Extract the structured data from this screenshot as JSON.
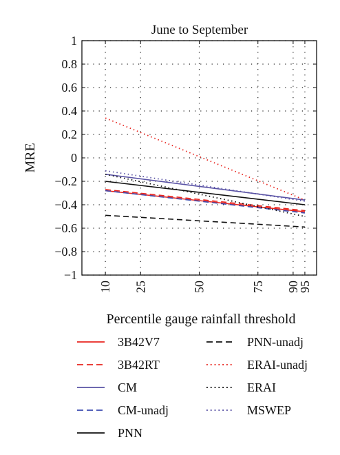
{
  "chart_data": {
    "type": "line",
    "title": "June to September",
    "xlabel": "Percentile gauge rainfall threshold",
    "ylabel": "MRE",
    "xlim": [
      0,
      100
    ],
    "ylim": [
      -1,
      1
    ],
    "x_ticks": [
      10,
      25,
      50,
      75,
      90,
      95
    ],
    "y_ticks": [
      1,
      0.8,
      0.6,
      0.4,
      0.2,
      0,
      -0.2,
      -0.4,
      -0.6,
      -0.8,
      -1
    ],
    "y_tick_labels": [
      "1",
      "0.8",
      "0.6",
      "0.4",
      "0.2",
      "0",
      "−0.2",
      "−0.4",
      "−0.6",
      "−0.8",
      "−1"
    ],
    "grid": true,
    "x": [
      10,
      95
    ],
    "series": [
      {
        "name": "3B42V7",
        "color": "#e8251f",
        "style": "solid",
        "values": [
          -0.28,
          -0.46
        ]
      },
      {
        "name": "3B42RT",
        "color": "#e8251f",
        "style": "dashed",
        "values": [
          -0.27,
          -0.45
        ]
      },
      {
        "name": "CM",
        "color": "#5a53a5",
        "style": "solid",
        "values": [
          -0.14,
          -0.36
        ]
      },
      {
        "name": "CM-unadj",
        "color": "#3b4bb0",
        "style": "dashed",
        "values": [
          -0.28,
          -0.47
        ]
      },
      {
        "name": "PNN",
        "color": "#111111",
        "style": "solid",
        "values": [
          -0.2,
          -0.4
        ]
      },
      {
        "name": "PNN-unadj",
        "color": "#111111",
        "style": "dashed",
        "values": [
          -0.49,
          -0.59
        ]
      },
      {
        "name": "ERAI-unadj",
        "color": "#e8251f",
        "style": "dotted",
        "values": [
          0.34,
          -0.36
        ]
      },
      {
        "name": "ERAI",
        "color": "#111111",
        "style": "dotted",
        "values": [
          -0.14,
          -0.5
        ]
      },
      {
        "name": "MSWEP",
        "color": "#5a53a5",
        "style": "dotted",
        "values": [
          -0.11,
          -0.37
        ]
      }
    ],
    "legend": {
      "placement": "below",
      "columns": [
        [
          "3B42V7",
          "3B42RT",
          "CM",
          "CM-unadj",
          "PNN"
        ],
        [
          "PNN-unadj",
          "ERAI-unadj",
          "ERAI",
          "MSWEP"
        ]
      ]
    }
  }
}
